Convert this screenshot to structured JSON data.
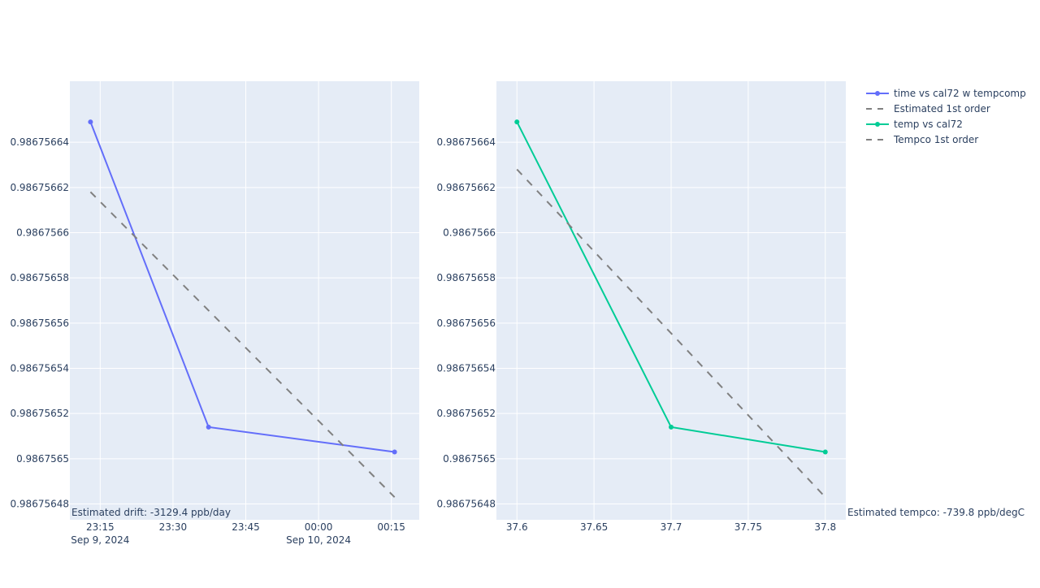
{
  "chart_data": [
    {
      "type": "line",
      "x_type": "date",
      "x_ticks": [
        {
          "value": "2024-09-09T23:15",
          "label": "23:15",
          "sublabel": "Sep 9, 2024"
        },
        {
          "value": "2024-09-09T23:30",
          "label": "23:30",
          "sublabel": ""
        },
        {
          "value": "2024-09-09T23:45",
          "label": "23:45",
          "sublabel": ""
        },
        {
          "value": "2024-09-10T00:00",
          "label": "00:00",
          "sublabel": "Sep 10, 2024"
        },
        {
          "value": "2024-09-10T00:15",
          "label": "00:15",
          "sublabel": ""
        }
      ],
      "xlim": [
        "2024-09-09T23:08:45",
        "2024-09-10T00:20:45"
      ],
      "ylim": [
        0.986756473,
        0.986756667
      ],
      "y_ticks": [
        {
          "value": 0.98675648,
          "label": "0.98675648"
        },
        {
          "value": 0.9867565,
          "label": "0.9867565"
        },
        {
          "value": 0.98675652,
          "label": "0.98675652"
        },
        {
          "value": 0.98675654,
          "label": "0.98675654"
        },
        {
          "value": 0.98675656,
          "label": "0.98675656"
        },
        {
          "value": 0.98675658,
          "label": "0.98675658"
        },
        {
          "value": 0.9867566,
          "label": "0.9867566"
        },
        {
          "value": 0.98675662,
          "label": "0.98675662"
        },
        {
          "value": 0.98675664,
          "label": "0.98675664"
        }
      ],
      "series": [
        {
          "name": "time vs cal72 w tempcomp",
          "color": "#636efa",
          "dash": "solid",
          "markers": true,
          "x": [
            "2024-09-09T23:13:00",
            "2024-09-09T23:37:20",
            "2024-09-10T00:15:40"
          ],
          "y": [
            0.986756649,
            0.986756514,
            0.986756503
          ]
        },
        {
          "name": "Estimated 1st order",
          "color": "#808080",
          "dash": "dash",
          "markers": false,
          "x": [
            "2024-09-09T23:13:00",
            "2024-09-10T00:15:40"
          ],
          "y": [
            0.986756618,
            0.986756483
          ]
        }
      ],
      "annotation": "Estimated drift:  -3129.4 ppb/day",
      "grid": true
    },
    {
      "type": "line",
      "x_type": "linear",
      "x_ticks": [
        {
          "value": 37.6,
          "label": "37.6"
        },
        {
          "value": 37.65,
          "label": "37.65"
        },
        {
          "value": 37.7,
          "label": "37.7"
        },
        {
          "value": 37.75,
          "label": "37.75"
        },
        {
          "value": 37.8,
          "label": "37.8"
        }
      ],
      "xlim": [
        37.5867,
        37.8133
      ],
      "ylim": [
        0.986756473,
        0.986756667
      ],
      "y_ticks": [
        {
          "value": 0.98675648,
          "label": "0.98675648"
        },
        {
          "value": 0.9867565,
          "label": "0.9867565"
        },
        {
          "value": 0.98675652,
          "label": "0.98675652"
        },
        {
          "value": 0.98675654,
          "label": "0.98675654"
        },
        {
          "value": 0.98675656,
          "label": "0.98675656"
        },
        {
          "value": 0.98675658,
          "label": "0.98675658"
        },
        {
          "value": 0.9867566,
          "label": "0.9867566"
        },
        {
          "value": 0.98675662,
          "label": "0.98675662"
        },
        {
          "value": 0.98675664,
          "label": "0.98675664"
        }
      ],
      "series": [
        {
          "name": "temp vs cal72",
          "color": "#00cc96",
          "dash": "solid",
          "markers": true,
          "x": [
            37.6,
            37.7,
            37.8
          ],
          "y": [
            0.986756649,
            0.986756514,
            0.986756503
          ]
        },
        {
          "name": "Tempco 1st order",
          "color": "#808080",
          "dash": "dash",
          "markers": false,
          "x": [
            37.6,
            37.8
          ],
          "y": [
            0.986756628,
            0.986756483
          ]
        }
      ],
      "annotation": "Estimated tempco:  -739.8 ppb/degC",
      "grid": true
    }
  ],
  "legend": {
    "placement": "top-right",
    "items": [
      {
        "label": "time vs cal72 w tempcomp",
        "color": "#636efa",
        "dash": "solid",
        "markers": true
      },
      {
        "label": "Estimated 1st order",
        "color": "#808080",
        "dash": "dash",
        "markers": false
      },
      {
        "label": "temp vs cal72",
        "color": "#00cc96",
        "dash": "solid",
        "markers": true
      },
      {
        "label": "Tempco 1st order",
        "color": "#808080",
        "dash": "dash",
        "markers": false
      }
    ]
  },
  "colors": {
    "plot_bg": "#e5ecf6",
    "grid": "#ffffff",
    "text": "#2a3f5f"
  }
}
